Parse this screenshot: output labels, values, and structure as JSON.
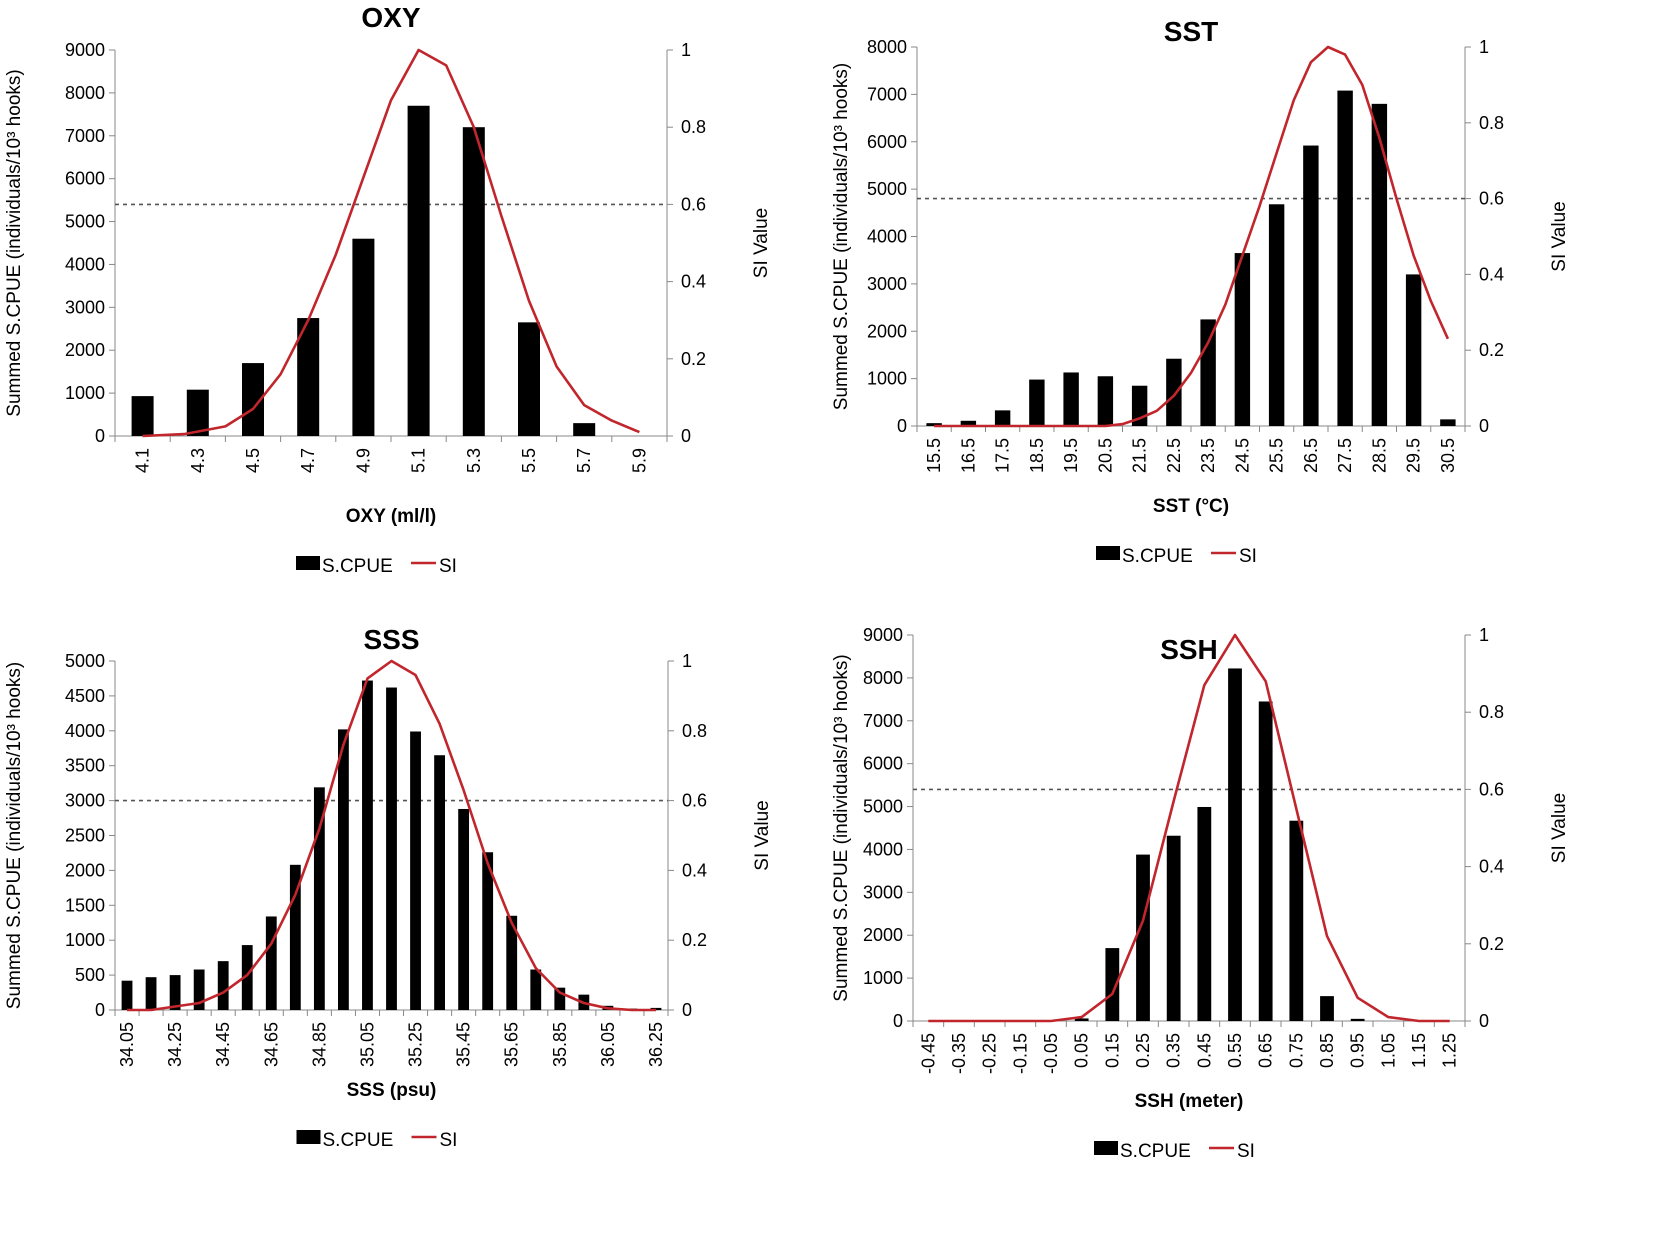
{
  "chart_data": [
    {
      "type": "bar",
      "title": "OXY",
      "xlabel": "OXY (ml/l)",
      "ylabel": "Summed S.CPUE (individuals/10³ hooks)",
      "y2label": "SI Value",
      "categories": [
        "4.1",
        "4.3",
        "4.5",
        "4.7",
        "4.9",
        "5.1",
        "5.3",
        "5.5",
        "5.7",
        "5.9"
      ],
      "series": [
        {
          "name": "S.CPUE",
          "axis": "left",
          "values": [
            930,
            1080,
            1700,
            2750,
            4600,
            7700,
            7200,
            2650,
            300,
            0
          ]
        },
        {
          "name": "SI",
          "axis": "right",
          "kind": "line",
          "color": "#c0262c",
          "x": [
            4.1,
            4.25,
            4.4,
            4.5,
            4.6,
            4.7,
            4.8,
            4.9,
            5.0,
            5.1,
            5.2,
            5.3,
            5.4,
            5.5,
            5.6,
            5.7,
            5.8,
            5.9
          ],
          "values": [
            0.0,
            0.005,
            0.025,
            0.07,
            0.16,
            0.3,
            0.47,
            0.67,
            0.87,
            1.0,
            0.96,
            0.8,
            0.57,
            0.35,
            0.18,
            0.08,
            0.04,
            0.01
          ]
        }
      ],
      "ylim": [
        0,
        9000
      ],
      "ystep": 1000,
      "y2lim": [
        0,
        1
      ],
      "y2ticks": [
        "0",
        "0.2",
        "0.4",
        "0.6",
        "0.8",
        "1"
      ],
      "threshold": 0.6,
      "legend": [
        "S.CPUE",
        "SI"
      ]
    },
    {
      "type": "bar",
      "title": "SST",
      "xlabel": "SST (°C)",
      "ylabel": "Summed S.CPUE (individuals/10³ hooks)",
      "y2label": "SI Value",
      "categories": [
        "15.5",
        "16.5",
        "17.5",
        "18.5",
        "19.5",
        "20.5",
        "21.5",
        "22.5",
        "23.5",
        "24.5",
        "25.5",
        "26.5",
        "27.5",
        "28.5",
        "29.5",
        "30.5"
      ],
      "series": [
        {
          "name": "S.CPUE",
          "axis": "left",
          "values": [
            60,
            110,
            330,
            980,
            1130,
            1050,
            850,
            1420,
            2250,
            3650,
            4680,
            5920,
            7080,
            6800,
            3200,
            140
          ]
        },
        {
          "name": "SI",
          "axis": "right",
          "kind": "line",
          "color": "#c0262c",
          "x": [
            15.5,
            16.5,
            17.5,
            18.5,
            19.5,
            20.5,
            21.0,
            21.5,
            22.0,
            22.5,
            23.0,
            23.5,
            24.0,
            24.5,
            25.0,
            25.5,
            26.0,
            26.5,
            27.0,
            27.5,
            28.0,
            28.5,
            29.0,
            29.5,
            30.0,
            30.5
          ],
          "values": [
            0,
            0,
            0,
            0,
            0,
            0,
            0.005,
            0.02,
            0.04,
            0.08,
            0.14,
            0.22,
            0.32,
            0.45,
            0.58,
            0.72,
            0.86,
            0.96,
            1.0,
            0.98,
            0.9,
            0.76,
            0.6,
            0.45,
            0.33,
            0.23
          ]
        }
      ],
      "ylim": [
        0,
        8000
      ],
      "ystep": 1000,
      "y2lim": [
        0,
        1
      ],
      "y2ticks": [
        "0",
        "0.2",
        "0.4",
        "0.6",
        "0.8",
        "1"
      ],
      "threshold": 0.6,
      "legend": [
        "S.CPUE",
        "SI"
      ]
    },
    {
      "type": "bar",
      "title": "SSS",
      "xlabel": "SSS (psu)",
      "ylabel": "Summed S.CPUE (individuals/10³ hooks)",
      "y2label": "SI Value",
      "categories": [
        "34.05",
        "34.15",
        "34.25",
        "34.35",
        "34.45",
        "34.55",
        "34.65",
        "34.75",
        "34.85",
        "34.95",
        "35.05",
        "35.15",
        "35.25",
        "35.35",
        "35.45",
        "35.55",
        "35.65",
        "35.75",
        "35.85",
        "35.95",
        "36.05",
        "36.15",
        "36.25"
      ],
      "xtickLabels": [
        "34.05",
        "",
        "34.25",
        "",
        "34.45",
        "",
        "34.65",
        "",
        "34.85",
        "",
        "35.05",
        "",
        "35.25",
        "",
        "35.45",
        "",
        "35.65",
        "",
        "35.85",
        "",
        "36.05",
        "",
        "36.25"
      ],
      "series": [
        {
          "name": "S.CPUE",
          "axis": "left",
          "values": [
            420,
            470,
            500,
            580,
            700,
            930,
            1340,
            2080,
            3190,
            4020,
            4720,
            4620,
            3990,
            3650,
            2880,
            2260,
            1350,
            580,
            320,
            220,
            60,
            20,
            30
          ]
        },
        {
          "name": "SI",
          "axis": "right",
          "kind": "line",
          "color": "#c0262c",
          "x": [
            34.05,
            34.15,
            34.25,
            34.35,
            34.45,
            34.55,
            34.65,
            34.75,
            34.85,
            34.95,
            35.05,
            35.15,
            35.25,
            35.35,
            35.45,
            35.55,
            35.65,
            35.75,
            35.85,
            35.95,
            36.05,
            36.15,
            36.25
          ],
          "values": [
            0,
            0,
            0.01,
            0.02,
            0.05,
            0.1,
            0.19,
            0.33,
            0.52,
            0.76,
            0.95,
            1.0,
            0.96,
            0.82,
            0.63,
            0.42,
            0.25,
            0.12,
            0.05,
            0.02,
            0.005,
            0,
            0
          ]
        }
      ],
      "ylim": [
        0,
        5000
      ],
      "ystep": 500,
      "y2lim": [
        0,
        1
      ],
      "y2ticks": [
        "0",
        "0.2",
        "0.4",
        "0.6",
        "0.8",
        "1"
      ],
      "threshold": 0.6,
      "legend": [
        "S.CPUE",
        "SI"
      ]
    },
    {
      "type": "bar",
      "title": "SSH",
      "xlabel": "SSH (meter)",
      "ylabel": "Summed S.CPUE (individuals/10³ hooks)",
      "y2label": "SI Value",
      "categories": [
        "-0.45",
        "-0.35",
        "-0.25",
        "-0.15",
        "-0.05",
        "0.05",
        "0.15",
        "0.25",
        "0.35",
        "0.45",
        "0.55",
        "0.65",
        "0.75",
        "0.85",
        "0.95",
        "1.05",
        "1.15",
        "1.25"
      ],
      "xtickLabels": [
        "-0.45",
        "-0.35",
        "-0.25",
        "-0.15",
        "-0.05",
        "0.05",
        "0.15",
        "0.25",
        "0.35",
        "0.45",
        "0.55",
        "0.65",
        "0.75",
        "0.85",
        "0.95",
        "1.05",
        "1.15",
        "1.25"
      ],
      "series": [
        {
          "name": "S.CPUE",
          "axis": "left",
          "values": [
            0,
            0,
            0,
            0,
            0,
            60,
            1700,
            3880,
            4320,
            4990,
            8220,
            7450,
            4670,
            580,
            50,
            0,
            0,
            0
          ]
        },
        {
          "name": "SI",
          "axis": "right",
          "kind": "line",
          "color": "#c0262c",
          "x": [
            -0.45,
            -0.35,
            -0.25,
            -0.15,
            -0.05,
            0.05,
            0.15,
            0.25,
            0.35,
            0.45,
            0.55,
            0.65,
            0.75,
            0.85,
            0.95,
            1.05,
            1.15,
            1.25
          ],
          "values": [
            0,
            0,
            0,
            0,
            0,
            0.01,
            0.07,
            0.26,
            0.57,
            0.87,
            1.0,
            0.88,
            0.55,
            0.22,
            0.06,
            0.01,
            0,
            0
          ]
        }
      ],
      "ylim": [
        0,
        9000
      ],
      "ystep": 1000,
      "y2lim": [
        0,
        1
      ],
      "y2ticks": [
        "0",
        "0.2",
        "0.4",
        "0.6",
        "0.8",
        "1"
      ],
      "threshold": 0.6,
      "legend": [
        "S.CPUE",
        "SI"
      ]
    }
  ]
}
